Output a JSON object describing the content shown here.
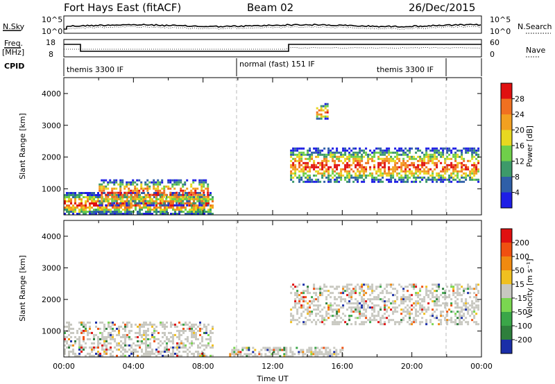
{
  "header": {
    "station": "Fort Hays East (fitACF)",
    "beam": "Beam 02",
    "date": "26/Dec/2015"
  },
  "aux_panels": {
    "nsky_label": "N.Sky",
    "nsearch_label": "N.Search",
    "freq_label_1": "Freq.",
    "freq_label_2": "[MHz]",
    "nave_label": "Nave",
    "cpid_label": "CPID",
    "noise_ticks": [
      "10^5",
      "10^0"
    ],
    "freq_ticks": [
      "18",
      "8"
    ],
    "nave_ticks": [
      "60",
      "0"
    ],
    "cpid_segments": [
      "themis 3300 IF",
      "normal (fast) 151 IF",
      "themis 3300 IF"
    ]
  },
  "chart_data": [
    {
      "type": "heatmap",
      "name": "power",
      "ylabel": "Slant Range [km]",
      "xlabel": "",
      "xlim": [
        0,
        24
      ],
      "ylim": [
        180,
        4500
      ],
      "y_ticks": [
        "1000",
        "2000",
        "3000",
        "4000"
      ],
      "colorbar_label": "Power [dB]",
      "colorbar_ticks": [
        "4",
        "8",
        "12",
        "16",
        "20",
        "24",
        "28"
      ],
      "colorbar_colors": [
        "#1e1ee6",
        "#2f5fa8",
        "#3d9a6a",
        "#6fcf4a",
        "#e8d820",
        "#f2a020",
        "#f07020",
        "#e01010"
      ],
      "regions": [
        {
          "t0": 0.0,
          "t1": 8.5,
          "r0": 200,
          "r1": 900,
          "level": 0.75
        },
        {
          "t0": 2.0,
          "t1": 8.3,
          "r0": 500,
          "r1": 1300,
          "level": 0.55
        },
        {
          "t0": 13.0,
          "t1": 23.8,
          "r0": 1200,
          "r1": 2300,
          "level": 0.6
        },
        {
          "t0": 14.5,
          "t1": 15.2,
          "r0": 3200,
          "r1": 3700,
          "level": 0.5
        }
      ]
    },
    {
      "type": "heatmap",
      "name": "velocity",
      "ylabel": "Slant Range [km]",
      "xlabel": "Time UT",
      "xlim": [
        0,
        24
      ],
      "ylim": [
        180,
        4500
      ],
      "y_ticks": [
        "1000",
        "2000",
        "3000",
        "4000"
      ],
      "x_ticks": [
        "00:00",
        "04:00",
        "08:00",
        "12:00",
        "16:00",
        "20:00",
        "00:00"
      ],
      "colorbar_label": "Velocity [m s⁻¹]",
      "colorbar_ticks": [
        "200",
        "100",
        "50",
        "15",
        "-15",
        "-50",
        "-100",
        "-200"
      ],
      "colorbar_colors": [
        "#1a2ea8",
        "#2e7f3c",
        "#3aa648",
        "#7ad650",
        "#c8c8c0",
        "#f0c020",
        "#f08a10",
        "#f05010",
        "#e01010"
      ],
      "regions": [
        {
          "t0": 0.0,
          "t1": 8.5,
          "r0": 200,
          "r1": 1300,
          "level": 0.45
        },
        {
          "t0": 13.0,
          "t1": 23.8,
          "r0": 1200,
          "r1": 2500,
          "level": 0.45
        },
        {
          "t0": 9.5,
          "t1": 16.0,
          "r0": 200,
          "r1": 500,
          "level": 0.6
        }
      ]
    }
  ]
}
